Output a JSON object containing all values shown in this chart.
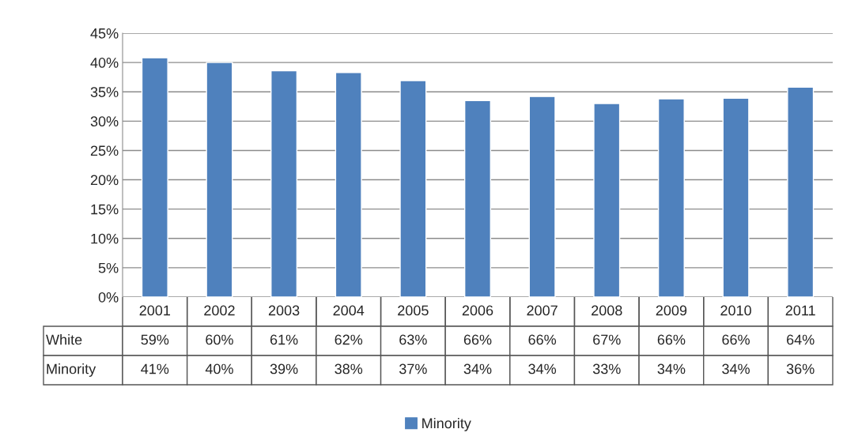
{
  "chart_data": {
    "type": "bar",
    "categories": [
      "2001",
      "2002",
      "2003",
      "2004",
      "2005",
      "2006",
      "2007",
      "2008",
      "2009",
      "2010",
      "2011"
    ],
    "series": [
      {
        "name": "White",
        "type": "other",
        "values": [
          null,
          null,
          null,
          null,
          null,
          null,
          null,
          null,
          null,
          null,
          null
        ],
        "value_labels": [
          "59%",
          "60%",
          "61%",
          "62%",
          "63%",
          "66%",
          "66%",
          "67%",
          "66%",
          "66%",
          "64%"
        ]
      },
      {
        "name": "Minority",
        "color": "#4f81bd",
        "values": [
          40.8,
          40.0,
          38.6,
          38.3,
          36.9,
          33.5,
          34.2,
          33.0,
          33.8,
          33.9,
          35.8
        ],
        "value_labels": [
          "41%",
          "40%",
          "39%",
          "38%",
          "37%",
          "34%",
          "34%",
          "33%",
          "34%",
          "34%",
          "36%"
        ]
      }
    ],
    "ylim": [
      0,
      45
    ],
    "yticks": [
      {
        "value": 0,
        "label": "0%"
      },
      {
        "value": 5,
        "label": "5%"
      },
      {
        "value": 10,
        "label": "10%"
      },
      {
        "value": 15,
        "label": "15%"
      },
      {
        "value": 20,
        "label": "20%"
      },
      {
        "value": 25,
        "label": "25%"
      },
      {
        "value": 30,
        "label": "30%"
      },
      {
        "value": 35,
        "label": "35%"
      },
      {
        "value": 40,
        "label": "40%"
      },
      {
        "value": 45,
        "label": "45%"
      }
    ],
    "grid": "y",
    "legend": "bottom"
  }
}
